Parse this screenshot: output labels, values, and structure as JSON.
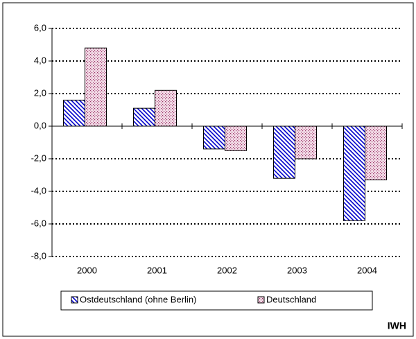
{
  "chart_data": {
    "type": "bar",
    "categories": [
      "2000",
      "2001",
      "2002",
      "2003",
      "2004"
    ],
    "series": [
      {
        "name": "Ostdeutschland (ohne Berlin)",
        "color": "#0000cc",
        "values": [
          1.6,
          1.1,
          -1.4,
          -3.2,
          -5.8
        ]
      },
      {
        "name": "Deutschland",
        "color": "#993366",
        "values": [
          4.8,
          2.2,
          -1.5,
          -2.0,
          -3.3
        ]
      }
    ],
    "ylim": [
      -8,
      6
    ],
    "yticks": [
      {
        "value": -8,
        "label": "-8,0"
      },
      {
        "value": -6,
        "label": "-6,0"
      },
      {
        "value": -4,
        "label": "-4,0"
      },
      {
        "value": -2,
        "label": "-2,0"
      },
      {
        "value": 0,
        "label": "0,0"
      },
      {
        "value": 2,
        "label": "2,0"
      },
      {
        "value": 4,
        "label": "4,0"
      },
      {
        "value": 6,
        "label": "6,0"
      }
    ],
    "grid": true,
    "legend": "bottom",
    "source": "IWH"
  }
}
